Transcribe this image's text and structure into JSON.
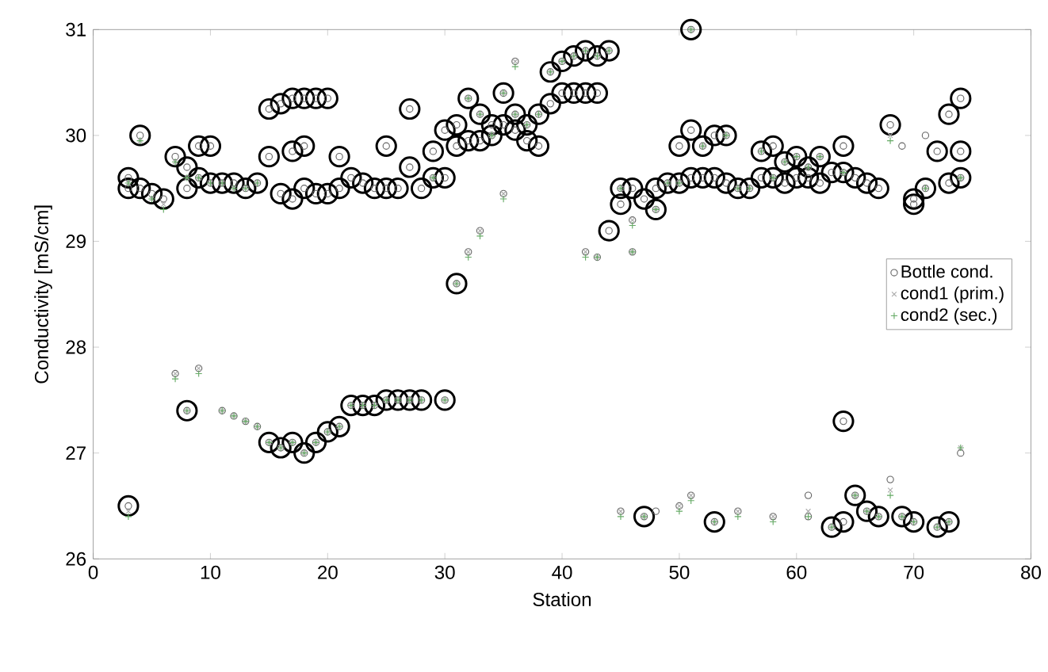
{
  "chart_data": {
    "type": "scatter",
    "xlabel": "Station",
    "ylabel": "Conductivity [mS/cm]",
    "xlim": [
      0,
      80
    ],
    "ylim": [
      26,
      31
    ],
    "xticks": [
      0,
      10,
      20,
      30,
      40,
      50,
      60,
      70,
      80
    ],
    "yticks": [
      26,
      27,
      28,
      29,
      30,
      31
    ],
    "grid": false,
    "legend": "right",
    "series": [
      {
        "color": "#000000",
        "marker": "circle",
        "x": [
          3,
          3,
          3,
          4,
          4,
          5,
          6,
          7,
          8,
          8,
          8,
          9,
          9,
          10,
          10,
          11,
          12,
          13,
          14,
          15,
          15,
          15,
          16,
          16,
          16,
          17,
          17,
          17,
          17,
          18,
          18,
          18,
          18,
          19,
          19,
          19,
          20,
          20,
          20,
          21,
          21,
          21,
          22,
          22,
          23,
          23,
          24,
          24,
          25,
          25,
          25,
          26,
          26,
          27,
          27,
          27,
          28,
          28,
          29,
          29,
          30,
          30,
          30,
          31,
          31,
          31,
          32,
          32,
          33,
          33,
          34,
          34,
          35,
          35,
          36,
          36,
          37,
          37,
          38,
          38,
          39,
          39,
          40,
          40,
          41,
          41,
          42,
          42,
          43,
          43,
          44,
          44,
          45,
          45,
          46,
          47,
          47,
          48,
          48,
          49,
          50,
          50,
          51,
          51,
          51,
          52,
          52,
          53,
          53,
          53,
          54,
          54,
          55,
          56,
          57,
          57,
          58,
          58,
          59,
          59,
          60,
          60,
          61,
          61,
          62,
          62,
          63,
          63,
          64,
          64,
          64,
          64,
          65,
          65,
          66,
          66,
          67,
          67,
          68,
          69,
          70,
          70,
          70,
          71,
          72,
          72,
          73,
          73,
          73,
          74,
          74,
          74
        ],
        "values": [
          26.5,
          29.6,
          29.5,
          30.0,
          29.5,
          29.45,
          29.4,
          29.8,
          27.4,
          29.5,
          29.7,
          29.6,
          29.9,
          29.55,
          29.9,
          29.55,
          29.55,
          29.5,
          29.55,
          27.1,
          29.8,
          30.25,
          27.05,
          29.45,
          30.3,
          27.1,
          29.4,
          29.85,
          30.35,
          27.0,
          29.5,
          29.9,
          30.35,
          27.1,
          29.45,
          30.35,
          27.2,
          29.45,
          30.35,
          27.25,
          29.8,
          29.5,
          27.45,
          29.6,
          27.45,
          29.55,
          27.45,
          29.5,
          27.5,
          29.5,
          29.9,
          27.5,
          29.5,
          27.5,
          29.7,
          30.25,
          27.5,
          29.5,
          29.6,
          29.85,
          27.5,
          29.6,
          30.05,
          28.6,
          29.9,
          30.1,
          30.35,
          29.95,
          30.2,
          29.95,
          30.0,
          30.1,
          30.4,
          30.1,
          30.2,
          30.05,
          30.1,
          29.95,
          30.2,
          29.9,
          30.6,
          30.3,
          30.7,
          30.4,
          30.75,
          30.4,
          30.8,
          30.4,
          30.75,
          30.4,
          30.8,
          29.1,
          29.5,
          29.35,
          29.5,
          29.4,
          26.4,
          29.3,
          29.5,
          29.55,
          29.9,
          29.55,
          31.0,
          30.05,
          29.6,
          29.9,
          29.6,
          30.0,
          29.6,
          26.35,
          30.0,
          29.55,
          29.5,
          29.5,
          29.85,
          29.6,
          29.9,
          29.6,
          29.75,
          29.55,
          29.8,
          29.6,
          29.7,
          29.6,
          29.8,
          29.55,
          29.65,
          26.3,
          29.9,
          29.65,
          27.3,
          26.35,
          29.6,
          26.6,
          29.55,
          26.45,
          29.5,
          26.4,
          30.1,
          26.4,
          29.4,
          29.35,
          26.35,
          29.5,
          29.85,
          26.3,
          30.2,
          29.55,
          26.35,
          30.35,
          29.85,
          29.6
        ]
      },
      {
        "name": "Bottle cond.",
        "color": "#666666",
        "marker": "circle",
        "x": [
          3,
          3,
          3,
          4,
          4,
          5,
          6,
          7,
          7,
          8,
          8,
          8,
          9,
          9,
          9,
          10,
          10,
          11,
          11,
          12,
          12,
          13,
          13,
          14,
          14,
          15,
          15,
          15,
          16,
          16,
          16,
          17,
          17,
          17,
          17,
          18,
          18,
          18,
          18,
          19,
          19,
          19,
          20,
          20,
          20,
          21,
          21,
          21,
          22,
          22,
          23,
          23,
          24,
          24,
          25,
          25,
          25,
          26,
          26,
          27,
          27,
          27,
          28,
          28,
          29,
          29,
          30,
          30,
          30,
          31,
          31,
          31,
          32,
          32,
          32,
          33,
          33,
          33,
          34,
          34,
          35,
          35,
          35,
          36,
          36,
          36,
          37,
          37,
          38,
          38,
          39,
          39,
          40,
          40,
          41,
          41,
          42,
          42,
          42,
          43,
          43,
          43,
          44,
          44,
          45,
          45,
          45,
          46,
          46,
          46,
          47,
          47,
          48,
          48,
          48,
          49,
          50,
          50,
          50,
          51,
          51,
          51,
          51,
          52,
          52,
          53,
          53,
          53,
          54,
          54,
          55,
          55,
          56,
          57,
          57,
          58,
          58,
          58,
          59,
          59,
          60,
          60,
          61,
          61,
          61,
          61,
          62,
          62,
          63,
          63,
          64,
          64,
          64,
          64,
          65,
          65,
          66,
          66,
          67,
          67,
          68,
          68,
          69,
          69,
          70,
          70,
          70,
          71,
          71,
          72,
          72,
          73,
          73,
          73,
          74,
          74,
          74,
          74
        ],
        "values": [
          26.5,
          29.6,
          29.5,
          30.0,
          29.5,
          29.45,
          29.4,
          29.8,
          27.75,
          27.4,
          29.5,
          29.7,
          29.6,
          29.9,
          27.8,
          29.55,
          29.9,
          29.55,
          27.4,
          29.55,
          27.35,
          29.5,
          27.3,
          29.55,
          27.25,
          27.1,
          29.8,
          30.25,
          27.05,
          29.45,
          30.3,
          27.1,
          29.4,
          29.85,
          30.35,
          27.0,
          29.5,
          29.9,
          30.35,
          27.1,
          29.45,
          30.35,
          27.2,
          29.45,
          30.35,
          27.25,
          29.8,
          29.5,
          27.45,
          29.6,
          27.45,
          29.55,
          27.45,
          29.5,
          27.5,
          29.5,
          29.9,
          27.5,
          29.5,
          27.5,
          29.7,
          30.25,
          27.5,
          29.5,
          29.6,
          29.85,
          27.5,
          29.6,
          30.05,
          28.6,
          29.9,
          30.1,
          30.35,
          29.95,
          28.9,
          30.2,
          29.95,
          29.1,
          30.0,
          30.1,
          30.4,
          30.1,
          29.45,
          30.2,
          30.05,
          30.7,
          30.1,
          29.95,
          30.2,
          29.9,
          30.6,
          30.3,
          30.7,
          30.4,
          30.75,
          30.4,
          30.8,
          30.4,
          28.9,
          30.75,
          30.4,
          28.85,
          30.8,
          29.1,
          29.5,
          29.35,
          26.45,
          29.5,
          28.9,
          29.2,
          29.4,
          26.4,
          29.3,
          29.5,
          26.45,
          29.55,
          29.9,
          29.55,
          26.5,
          31.0,
          30.05,
          29.6,
          26.6,
          29.9,
          29.6,
          30.0,
          29.6,
          26.35,
          30.0,
          29.55,
          29.5,
          26.45,
          29.5,
          29.85,
          29.6,
          29.9,
          29.6,
          26.4,
          29.75,
          29.55,
          29.8,
          29.6,
          29.7,
          29.6,
          26.6,
          26.4,
          29.8,
          29.55,
          29.65,
          26.3,
          29.9,
          29.65,
          27.3,
          26.35,
          29.6,
          26.6,
          29.55,
          26.45,
          29.5,
          26.4,
          30.1,
          26.75,
          29.9,
          26.4,
          29.4,
          29.35,
          26.35,
          29.5,
          30.0,
          29.85,
          26.3,
          30.2,
          29.55,
          26.35,
          30.35,
          29.85,
          29.6,
          27.0
        ]
      },
      {
        "name": "cond1 (prim.)",
        "color": "#aaaaaa",
        "marker": "cross",
        "x": [
          3,
          3,
          4,
          5,
          6,
          7,
          7,
          8,
          8,
          9,
          9,
          10,
          11,
          11,
          12,
          12,
          13,
          13,
          14,
          14,
          15,
          16,
          17,
          18,
          19,
          20,
          21,
          22,
          23,
          24,
          25,
          26,
          27,
          28,
          29,
          30,
          31,
          32,
          32,
          33,
          33,
          34,
          35,
          35,
          36,
          36,
          37,
          38,
          39,
          40,
          41,
          42,
          42,
          43,
          43,
          44,
          45,
          45,
          46,
          46,
          47,
          48,
          49,
          50,
          50,
          51,
          51,
          52,
          53,
          54,
          55,
          55,
          56,
          57,
          58,
          58,
          59,
          60,
          61,
          61,
          62,
          63,
          64,
          65,
          66,
          67,
          68,
          68,
          69,
          70,
          71,
          72,
          73,
          74,
          74
        ],
        "values": [
          26.45,
          29.55,
          29.95,
          29.4,
          29.35,
          29.75,
          27.75,
          27.4,
          29.6,
          29.6,
          27.8,
          29.55,
          29.55,
          27.4,
          29.5,
          27.35,
          29.5,
          27.3,
          29.55,
          27.25,
          27.1,
          27.05,
          27.1,
          27.0,
          27.1,
          27.2,
          27.25,
          27.45,
          27.45,
          27.45,
          27.5,
          27.5,
          27.5,
          27.5,
          29.6,
          27.5,
          28.6,
          30.35,
          28.9,
          30.2,
          29.1,
          30.0,
          30.4,
          29.45,
          30.2,
          30.7,
          30.1,
          30.2,
          30.6,
          30.7,
          30.75,
          30.8,
          28.9,
          30.75,
          28.85,
          30.8,
          29.5,
          26.45,
          28.9,
          29.2,
          26.4,
          29.3,
          29.55,
          29.55,
          26.5,
          31.0,
          26.6,
          29.9,
          26.35,
          30.0,
          29.5,
          26.45,
          29.5,
          29.85,
          29.6,
          26.4,
          29.75,
          29.8,
          29.7,
          26.45,
          29.8,
          26.3,
          29.65,
          26.6,
          26.45,
          26.4,
          30.0,
          26.65,
          26.4,
          26.35,
          29.5,
          26.3,
          26.35,
          29.6,
          27.05
        ]
      },
      {
        "name": "cond2 (sec.)",
        "color": "#66aa66",
        "marker": "plus",
        "x": [
          3,
          3,
          4,
          5,
          6,
          7,
          7,
          8,
          8,
          9,
          9,
          10,
          11,
          11,
          12,
          12,
          13,
          13,
          14,
          14,
          15,
          16,
          17,
          18,
          19,
          20,
          21,
          22,
          23,
          24,
          25,
          26,
          27,
          28,
          29,
          30,
          31,
          32,
          32,
          33,
          33,
          34,
          35,
          35,
          36,
          36,
          37,
          38,
          39,
          40,
          41,
          42,
          42,
          43,
          43,
          44,
          45,
          45,
          46,
          46,
          47,
          48,
          49,
          50,
          50,
          51,
          51,
          52,
          53,
          54,
          55,
          55,
          56,
          57,
          58,
          58,
          59,
          60,
          61,
          61,
          62,
          63,
          64,
          65,
          66,
          67,
          68,
          68,
          69,
          70,
          71,
          72,
          73,
          74,
          74
        ],
        "values": [
          26.4,
          29.55,
          29.95,
          29.4,
          29.3,
          29.75,
          27.7,
          27.4,
          29.6,
          29.6,
          27.75,
          29.55,
          29.55,
          27.4,
          29.5,
          27.35,
          29.5,
          27.3,
          29.55,
          27.25,
          27.1,
          27.05,
          27.1,
          27.0,
          27.1,
          27.2,
          27.25,
          27.45,
          27.45,
          27.45,
          27.5,
          27.5,
          27.5,
          27.5,
          29.6,
          27.5,
          28.6,
          30.35,
          28.85,
          30.2,
          29.05,
          30.0,
          30.4,
          29.4,
          30.2,
          30.65,
          30.1,
          30.2,
          30.6,
          30.7,
          30.75,
          30.8,
          28.85,
          30.75,
          28.85,
          30.8,
          29.5,
          26.4,
          28.9,
          29.15,
          26.4,
          29.3,
          29.55,
          29.55,
          26.45,
          31.0,
          26.55,
          29.9,
          26.35,
          30.0,
          29.5,
          26.4,
          29.5,
          29.85,
          29.6,
          26.35,
          29.75,
          29.8,
          29.7,
          26.4,
          29.8,
          26.3,
          29.65,
          26.6,
          26.45,
          26.4,
          29.95,
          26.6,
          26.4,
          26.35,
          29.5,
          26.3,
          26.35,
          29.6,
          27.05
        ]
      }
    ]
  }
}
